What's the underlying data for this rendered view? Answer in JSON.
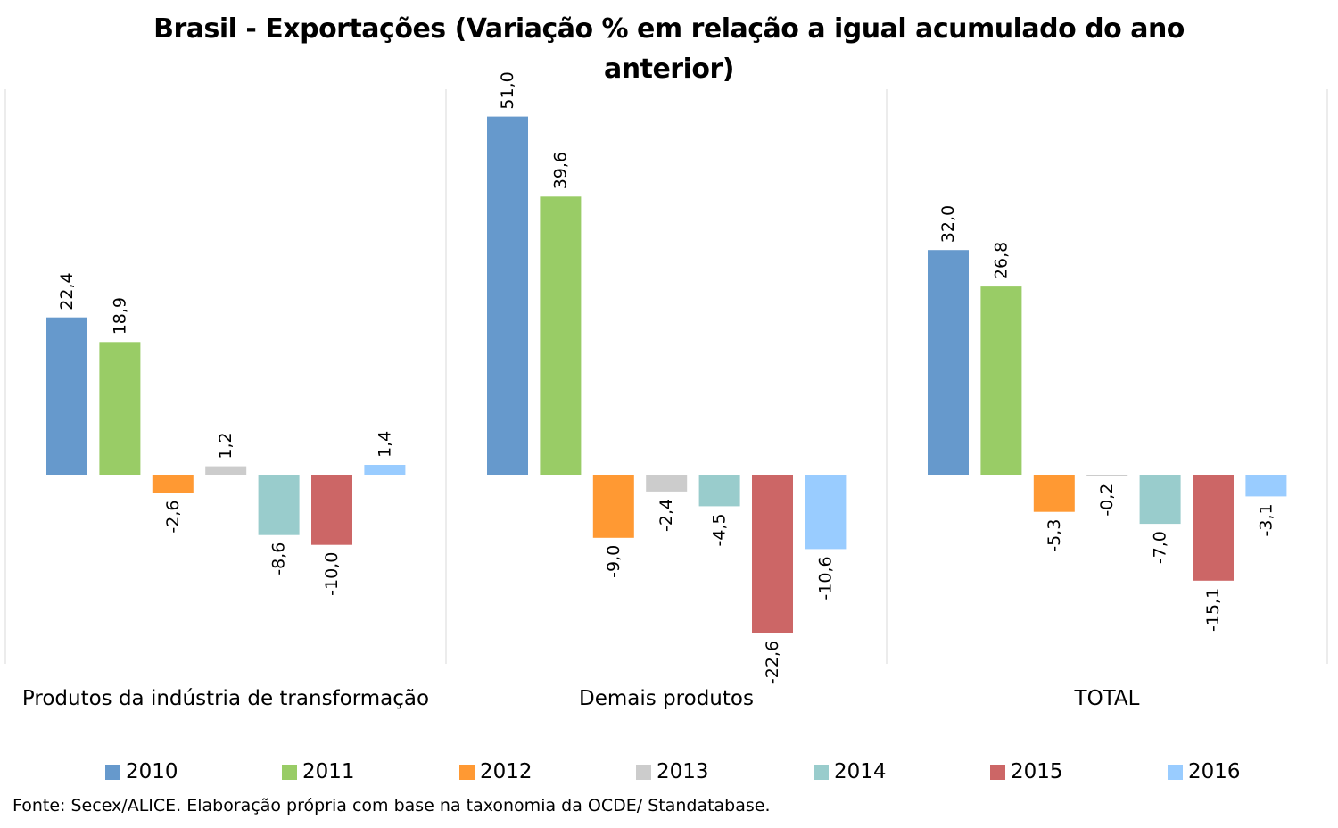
{
  "chart_data": {
    "type": "bar",
    "title": "Brasil - Exportações (Variação % em relação a igual acumulado do ano anterior)",
    "categories": [
      "Produtos da indústria de transformação",
      "Demais produtos",
      "TOTAL"
    ],
    "series": [
      {
        "name": "2010",
        "color": "#6699cc",
        "values": [
          22.4,
          51.0,
          32.0
        ],
        "labels": [
          "22,4",
          "51,0",
          "32,0"
        ]
      },
      {
        "name": "2011",
        "color": "#99cc66",
        "values": [
          18.9,
          39.6,
          26.8
        ],
        "labels": [
          "18,9",
          "39,6",
          "26,8"
        ]
      },
      {
        "name": "2012",
        "color": "#ff9933",
        "values": [
          -2.6,
          -9.0,
          -5.3
        ],
        "labels": [
          "-2,6",
          "-9,0",
          "-5,3"
        ]
      },
      {
        "name": "2013",
        "color": "#cccccc",
        "values": [
          1.2,
          -2.4,
          -0.2
        ],
        "labels": [
          "1,2",
          "-2,4",
          "-0,2"
        ]
      },
      {
        "name": "2014",
        "color": "#99cccc",
        "values": [
          -8.6,
          -4.5,
          -7.0
        ],
        "labels": [
          "-8,6",
          "-4,5",
          "-7,0"
        ]
      },
      {
        "name": "2015",
        "color": "#cc6666",
        "values": [
          -10.0,
          -22.6,
          -15.1
        ],
        "labels": [
          "-10,0",
          "-22,6",
          "-15,1"
        ]
      },
      {
        "name": "2016",
        "color": "#99ccff",
        "values": [
          1.4,
          -10.6,
          -3.1
        ],
        "labels": [
          "1,4",
          "-10,6",
          "-3,1"
        ]
      }
    ],
    "ylim": [
      -27,
      55
    ],
    "grid": false,
    "legend": "bottom",
    "data_labels": "rotated-vertical"
  },
  "source_note": "Fonte: Secex/ALICE. Elaboração própria com base na taxonomia da OCDE/ Standatabase."
}
